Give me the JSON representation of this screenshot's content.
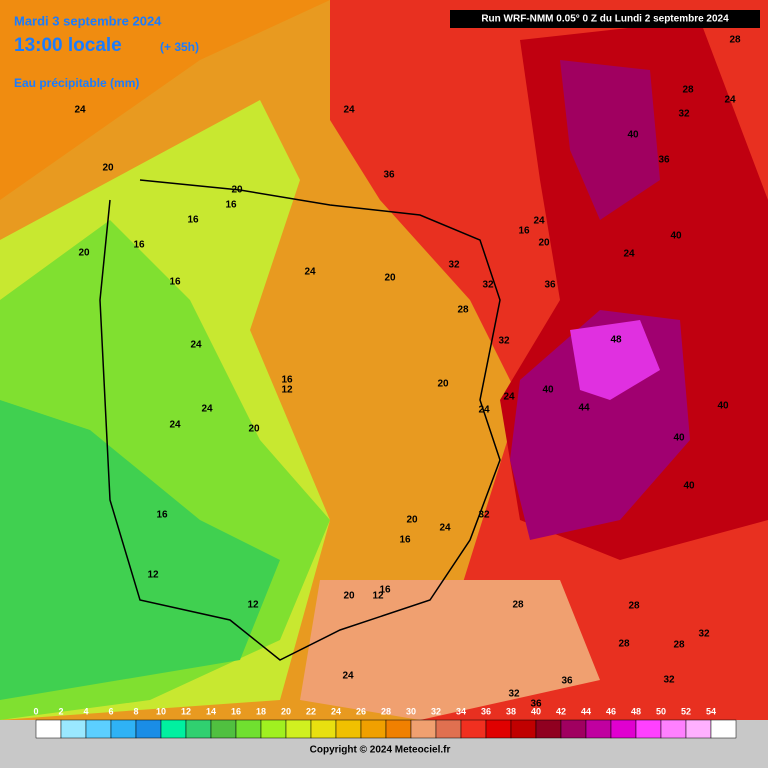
{
  "header": {
    "date": "Mardi 3 septembre 2024",
    "time": "13:00 locale",
    "lead": "(+ 35h)",
    "variable": "Eau précipitable (mm)",
    "run": "Run WRF-NMM 0.05° 0 Z du Lundi 2 septembre 2024"
  },
  "map_labels": [
    "24",
    "20",
    "20",
    "16",
    "16",
    "16",
    "20",
    "16",
    "24",
    "20",
    "32",
    "32",
    "36",
    "28",
    "32",
    "24",
    "16",
    "12",
    "20",
    "24",
    "24",
    "20",
    "24",
    "24",
    "40",
    "44",
    "48",
    "40",
    "40",
    "40",
    "16",
    "32",
    "20",
    "24",
    "16",
    "12",
    "12",
    "20",
    "16",
    "12",
    "28",
    "28",
    "32",
    "28",
    "28",
    "36",
    "32",
    "24",
    "32",
    "36",
    "24",
    "36",
    "40",
    "36",
    "32",
    "28",
    "24",
    "28",
    "40",
    "24",
    "16",
    "20",
    "24"
  ],
  "legend": {
    "ticks": [
      "0",
      "2",
      "4",
      "6",
      "8",
      "10",
      "12",
      "14",
      "16",
      "18",
      "20",
      "22",
      "24",
      "26",
      "28",
      "30",
      "32",
      "34",
      "36",
      "38",
      "40",
      "42",
      "44",
      "46",
      "48",
      "50",
      "52",
      "54"
    ],
    "colors": [
      "#ffffff",
      "#9ae8ff",
      "#5ccfff",
      "#2fb2f5",
      "#1a8de6",
      "#00f0a0",
      "#30d070",
      "#50c040",
      "#70e030",
      "#a0f020",
      "#d0f020",
      "#e8e010",
      "#f0c000",
      "#f0a000",
      "#f08000",
      "#f0a070",
      "#e07050",
      "#f03020",
      "#e00000",
      "#c00000",
      "#900020",
      "#a00060",
      "#c000a0",
      "#e000d0",
      "#ff40ff",
      "#ff80ff",
      "#ffb0ff",
      "#ffffff"
    ]
  },
  "copyright": "Copyright © 2024 Meteociel.fr"
}
